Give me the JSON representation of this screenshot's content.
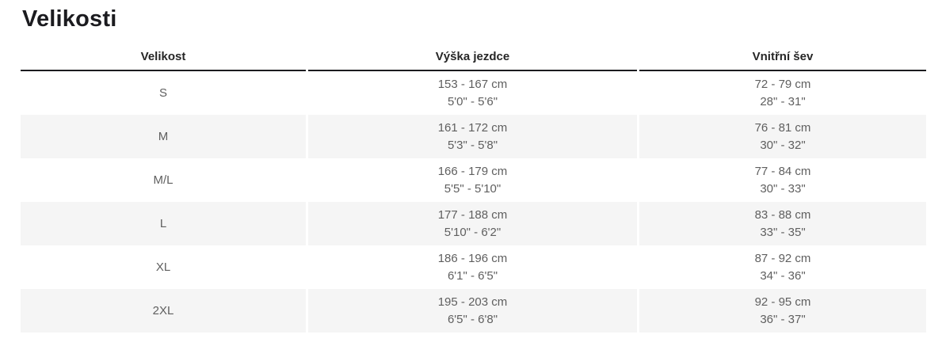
{
  "page": {
    "title": "Velikosti"
  },
  "theme": {
    "stripe_color": "#f5f5f5",
    "header_border_color": "#1b1b1f",
    "header_text_color": "#262626",
    "body_text_color": "#5f5f5f",
    "title_color": "#1b1b1f",
    "background": "#ffffff"
  },
  "table": {
    "headers": {
      "size": "Velikost",
      "rider_height": "Výška jezdce",
      "inseam": "Vnitřní šev"
    },
    "rows": [
      {
        "size": "S",
        "height_cm": "153 - 167 cm",
        "height_imp": "5'0\" - 5'6\"",
        "inseam_cm": "72 - 79 cm",
        "inseam_imp": "28\" - 31\""
      },
      {
        "size": "M",
        "height_cm": "161 - 172 cm",
        "height_imp": "5'3\" - 5'8\"",
        "inseam_cm": "76 - 81 cm",
        "inseam_imp": "30\" - 32\""
      },
      {
        "size": "M/L",
        "height_cm": "166 - 179 cm",
        "height_imp": "5'5\" - 5'10\"",
        "inseam_cm": "77 - 84 cm",
        "inseam_imp": "30\" - 33\""
      },
      {
        "size": "L",
        "height_cm": "177 - 188 cm",
        "height_imp": "5'10\" - 6'2\"",
        "inseam_cm": "83 - 88 cm",
        "inseam_imp": "33\" - 35\""
      },
      {
        "size": "XL",
        "height_cm": "186 - 196 cm",
        "height_imp": "6'1\" - 6'5\"",
        "inseam_cm": "87 - 92 cm",
        "inseam_imp": "34\" - 36\""
      },
      {
        "size": "2XL",
        "height_cm": "195 - 203 cm",
        "height_imp": "6'5\" - 6'8\"",
        "inseam_cm": "92 - 95 cm",
        "inseam_imp": "36\" - 37\""
      }
    ]
  }
}
